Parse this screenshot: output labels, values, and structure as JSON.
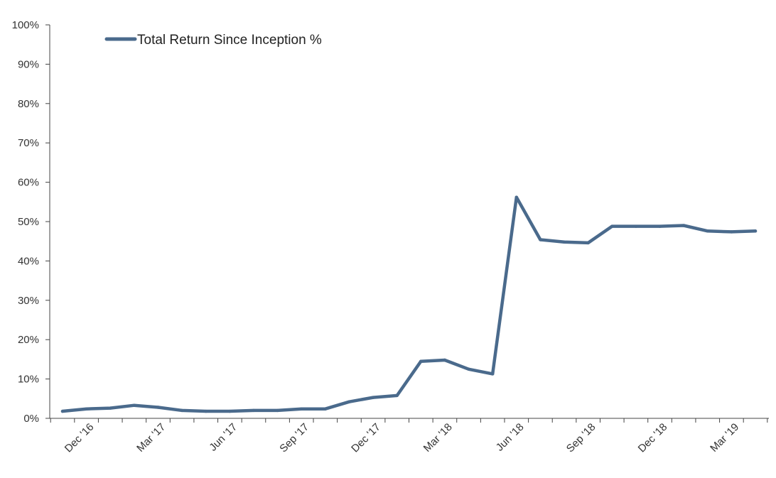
{
  "chart_data": {
    "type": "line",
    "title": "",
    "xlabel": "",
    "ylabel": "",
    "ylim": [
      0,
      100
    ],
    "y_ticks": [
      "0%",
      "10%",
      "20%",
      "30%",
      "40%",
      "50%",
      "60%",
      "70%",
      "80%",
      "90%",
      "100%"
    ],
    "x_tick_labels": [
      "Dec '16",
      "Mar '17",
      "Jun '17",
      "Sep '17",
      "Dec '17",
      "Mar '18",
      "Jun '18",
      "Sep '18",
      "Dec '18",
      "Mar '19"
    ],
    "x_tick_months": [
      "2016-12",
      "2017-03",
      "2017-06",
      "2017-09",
      "2017-12",
      "2018-03",
      "2018-06",
      "2018-09",
      "2018-12",
      "2019-03"
    ],
    "x_range": [
      "2016-11",
      "2019-04"
    ],
    "legend": {
      "position": "top-left"
    },
    "grid": false,
    "series": [
      {
        "name": "Total Return Since Inception %",
        "color": "#4a6a8c",
        "x": [
          "2016-11",
          "2016-12",
          "2017-01",
          "2017-02",
          "2017-03",
          "2017-04",
          "2017-05",
          "2017-06",
          "2017-07",
          "2017-08",
          "2017-09",
          "2017-10",
          "2017-11",
          "2017-12",
          "2018-01",
          "2018-02",
          "2018-03",
          "2018-04",
          "2018-05",
          "2018-06",
          "2018-07",
          "2018-08",
          "2018-09",
          "2018-10",
          "2018-11",
          "2018-12",
          "2019-01",
          "2019-02",
          "2019-03",
          "2019-04"
        ],
        "values": [
          1.8,
          2.4,
          2.6,
          3.3,
          2.8,
          2.0,
          1.8,
          1.8,
          2.0,
          2.0,
          2.4,
          2.4,
          4.2,
          5.3,
          5.8,
          14.5,
          14.8,
          12.5,
          11.3,
          56.2,
          45.4,
          44.8,
          44.6,
          48.8,
          48.8,
          48.8,
          49.0,
          47.6,
          47.4,
          47.6
        ]
      }
    ]
  }
}
